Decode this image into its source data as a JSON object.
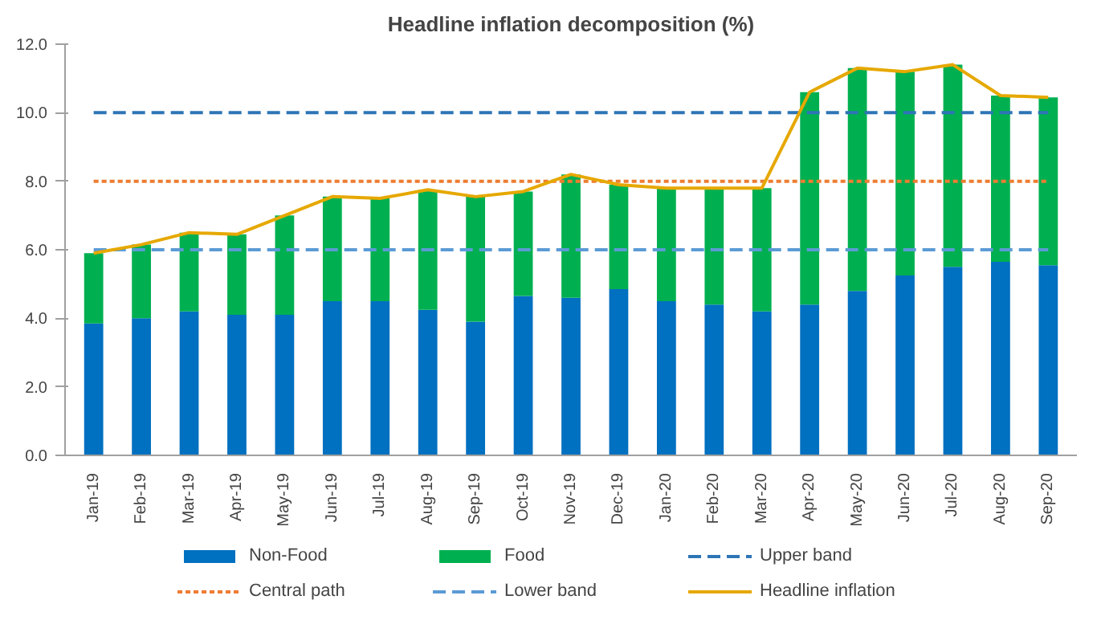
{
  "chart_data": {
    "type": "bar",
    "title": "Headline inflation decomposition (%)",
    "stacked": true,
    "legend": "bottom",
    "grid": false,
    "categories": [
      "Jan-19",
      "Feb-19",
      "Mar-19",
      "Apr-19",
      "May-19",
      "Jun-19",
      "Jul-19",
      "Aug-19",
      "Sep-19",
      "Oct-19",
      "Nov-19",
      "Dec-19",
      "Jan-20",
      "Feb-20",
      "Mar-20",
      "Apr-20",
      "May-20",
      "Jun-20",
      "Jul-20",
      "Aug-20",
      "Sep-20"
    ],
    "ylim": [
      0,
      12
    ],
    "yticks": [
      {
        "value": 0,
        "label": "0.0"
      },
      {
        "value": 2,
        "label": "2.0"
      },
      {
        "value": 4,
        "label": "4.0"
      },
      {
        "value": 6,
        "label": "6.0"
      },
      {
        "value": 8,
        "label": "8.0"
      },
      {
        "value": 10,
        "label": "10.0"
      },
      {
        "value": 12,
        "label": "12.0"
      }
    ],
    "series": [
      {
        "name": "Non-Food",
        "color": "#0070c0",
        "values": [
          3.85,
          4.0,
          4.2,
          4.1,
          4.1,
          4.5,
          4.5,
          4.25,
          3.9,
          4.65,
          4.6,
          4.85,
          4.5,
          4.4,
          4.2,
          4.4,
          4.8,
          5.25,
          5.5,
          5.65,
          5.55
        ]
      },
      {
        "name": "Food",
        "color": "#00b050",
        "values": [
          2.05,
          2.15,
          2.3,
          2.35,
          2.9,
          3.05,
          3.0,
          3.5,
          3.65,
          3.05,
          3.6,
          3.05,
          3.3,
          3.4,
          3.6,
          6.2,
          6.5,
          5.95,
          5.9,
          4.85,
          4.9
        ]
      },
      {
        "name": "Upper band",
        "type": "line",
        "color": "#2e75b6",
        "line_style": "dashed",
        "values": [
          10,
          10,
          10,
          10,
          10,
          10,
          10,
          10,
          10,
          10,
          10,
          10,
          10,
          10,
          10,
          10,
          10,
          10,
          10,
          10,
          10
        ]
      },
      {
        "name": "Central path",
        "type": "line",
        "color": "#ed7d31",
        "line_style": "dotted",
        "values": [
          8,
          8,
          8,
          8,
          8,
          8,
          8,
          8,
          8,
          8,
          8,
          8,
          8,
          8,
          8,
          8,
          8,
          8,
          8,
          8,
          8
        ]
      },
      {
        "name": "Lower band",
        "type": "line",
        "color": "#5b9bd5",
        "line_style": "dashed",
        "values": [
          6,
          6,
          6,
          6,
          6,
          6,
          6,
          6,
          6,
          6,
          6,
          6,
          6,
          6,
          6,
          6,
          6,
          6,
          6,
          6,
          6
        ]
      },
      {
        "name": "Headline inflation",
        "type": "line",
        "color": "#e6a800",
        "line_style": "solid",
        "values": [
          5.9,
          6.15,
          6.5,
          6.45,
          7.0,
          7.55,
          7.5,
          7.75,
          7.55,
          7.7,
          8.2,
          7.9,
          7.8,
          7.8,
          7.8,
          10.6,
          11.3,
          11.2,
          11.4,
          10.5,
          10.45
        ]
      }
    ]
  }
}
